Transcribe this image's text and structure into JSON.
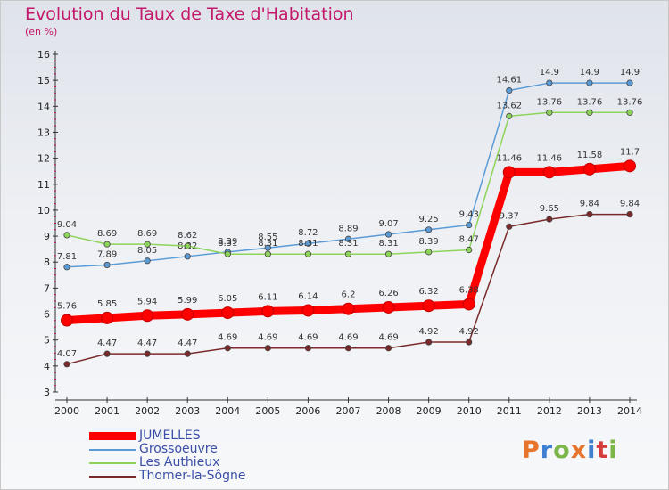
{
  "header": {
    "title": "Evolution du Taux de Taxe d'Habitation",
    "subtitle": "(en %)"
  },
  "logo": {
    "text": "Proxiti",
    "colors": [
      "#e8732a",
      "#3f7fd1",
      "#7ab648",
      "#e8732a",
      "#3f7fd1",
      "#d63b3b",
      "#7ab648"
    ]
  },
  "chart_data": {
    "type": "line",
    "title": "Evolution du Taux de Taxe d'Habitation",
    "subtitle": "(en %)",
    "xlabel": "",
    "ylabel": "",
    "x": [
      "2000",
      "2001",
      "2002",
      "2003",
      "2004",
      "2005",
      "2006",
      "2007",
      "2008",
      "2009",
      "2010",
      "2011",
      "2012",
      "2013",
      "2014"
    ],
    "ylim": [
      3,
      16
    ],
    "yticks": [
      3,
      4,
      5,
      6,
      7,
      8,
      9,
      10,
      11,
      12,
      13,
      14,
      15,
      16
    ],
    "grid": false,
    "legend_position": "bottom-left",
    "series": [
      {
        "name": "Grossoeuvre",
        "color": "#5b9bd5",
        "values": [
          7.81,
          7.89,
          8.05,
          8.22,
          8.39,
          8.55,
          8.72,
          8.89,
          9.07,
          9.25,
          9.43,
          14.61,
          14.9,
          14.9,
          14.9
        ],
        "labels": [
          "7.81",
          "7.89",
          "8.05",
          "8.22",
          "8.39",
          "8.55",
          "8.72",
          "8.89",
          "9.07",
          "9.25",
          "9.43",
          "14.61",
          "14.9",
          "14.9",
          "14.9"
        ]
      },
      {
        "name": "Les Authieux",
        "color": "#8fd45a",
        "values": [
          9.04,
          8.69,
          8.69,
          8.62,
          8.31,
          8.31,
          8.31,
          8.31,
          8.31,
          8.39,
          8.47,
          13.62,
          13.76,
          13.76,
          13.76
        ],
        "labels": [
          "9.04",
          "8.69",
          "8.69",
          "8.62",
          "8.31",
          "8.31",
          "8.31",
          "8.31",
          "8.31",
          "8.39",
          "8.47",
          "13.62",
          "13.76",
          "13.76",
          "13.76"
        ]
      },
      {
        "name": "Thomer-la-Sôgne",
        "color": "#7a2a2a",
        "values": [
          4.07,
          4.47,
          4.47,
          4.47,
          4.69,
          4.69,
          4.69,
          4.69,
          4.69,
          4.92,
          4.92,
          9.37,
          9.65,
          9.84,
          9.84
        ],
        "labels": [
          "4.07",
          "4.47",
          "4.47",
          "4.47",
          "4.69",
          "4.69",
          "4.69",
          "4.69",
          "4.69",
          "4.92",
          "4.92",
          "9.37",
          "9.65",
          "9.84",
          "9.84"
        ]
      },
      {
        "name": "JUMELLES",
        "color": "#ff0000",
        "values": [
          5.76,
          5.85,
          5.94,
          5.99,
          6.05,
          6.11,
          6.14,
          6.2,
          6.26,
          6.32,
          6.38,
          11.46,
          11.46,
          11.58,
          11.7
        ],
        "labels": [
          "5.76",
          "5.85",
          "5.94",
          "5.99",
          "6.05",
          "6.11",
          "6.14",
          "6.2",
          "6.26",
          "6.32",
          "6.38",
          "11.46",
          "11.46",
          "11.58",
          "11.7"
        ]
      }
    ]
  },
  "legend": {
    "items": [
      {
        "label": "JUMELLES",
        "color": "#ff0000",
        "thick": true
      },
      {
        "label": "Grossoeuvre",
        "color": "#5b9bd5",
        "thick": false
      },
      {
        "label": "Les Authieux",
        "color": "#8fd45a",
        "thick": false
      },
      {
        "label": "Thomer-la-Sôgne",
        "color": "#7a2a2a",
        "thick": false
      }
    ]
  }
}
